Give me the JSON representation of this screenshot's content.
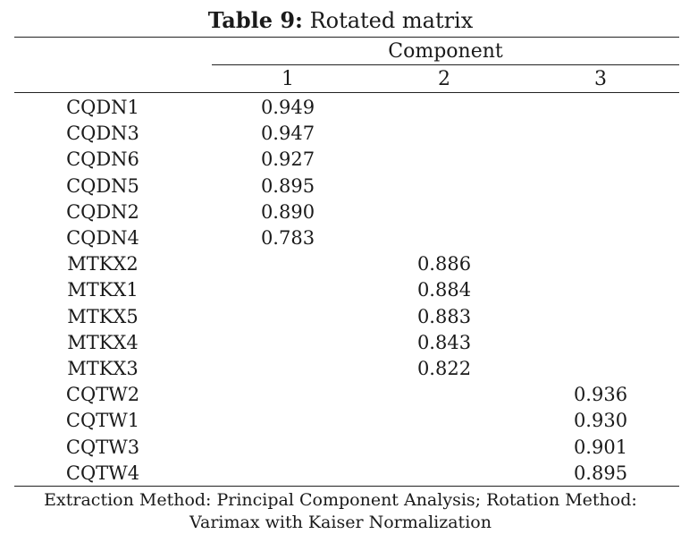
{
  "caption": {
    "label": "Table 9:",
    "title": "Rotated matrix"
  },
  "header": {
    "group": "Component",
    "columns": [
      "1",
      "2",
      "3"
    ]
  },
  "rows": [
    {
      "label": "CQDN1",
      "values": [
        "0.949",
        "",
        ""
      ]
    },
    {
      "label": "CQDN3",
      "values": [
        "0.947",
        "",
        ""
      ]
    },
    {
      "label": "CQDN6",
      "values": [
        "0.927",
        "",
        ""
      ]
    },
    {
      "label": "CQDN5",
      "values": [
        "0.895",
        "",
        ""
      ]
    },
    {
      "label": "CQDN2",
      "values": [
        "0.890",
        "",
        ""
      ]
    },
    {
      "label": "CQDN4",
      "values": [
        "0.783",
        "",
        ""
      ]
    },
    {
      "label": "MTKX2",
      "values": [
        "",
        "0.886",
        ""
      ]
    },
    {
      "label": "MTKX1",
      "values": [
        "",
        "0.884",
        ""
      ]
    },
    {
      "label": "MTKX5",
      "values": [
        "",
        "0.883",
        ""
      ]
    },
    {
      "label": "MTKX4",
      "values": [
        "",
        "0.843",
        ""
      ]
    },
    {
      "label": "MTKX3",
      "values": [
        "",
        "0.822",
        ""
      ]
    },
    {
      "label": "CQTW2",
      "values": [
        "",
        "",
        "0.936"
      ]
    },
    {
      "label": "CQTW1",
      "values": [
        "",
        "",
        "0.930"
      ]
    },
    {
      "label": "CQTW3",
      "values": [
        "",
        "",
        "0.901"
      ]
    },
    {
      "label": "CQTW4",
      "values": [
        "",
        "",
        "0.895"
      ]
    }
  ],
  "footnote": {
    "line1": "Extraction Method: Principal Component Analysis; Rotation Method:",
    "line2": "Varimax with Kaiser Normalization"
  }
}
